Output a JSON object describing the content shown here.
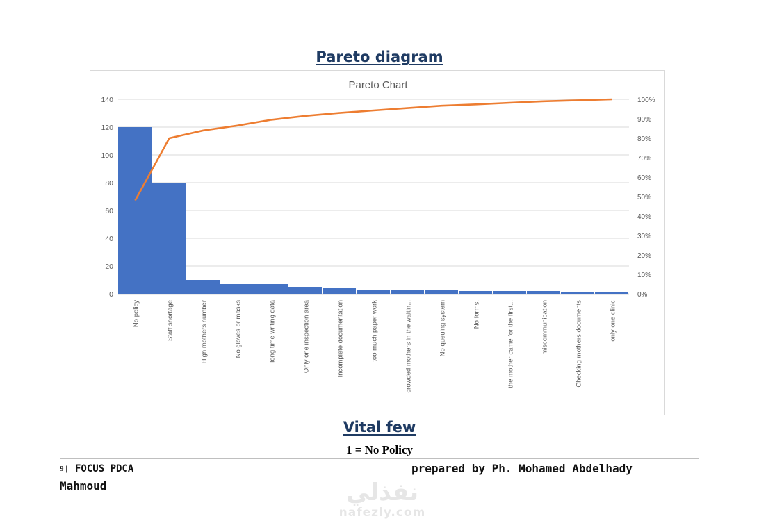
{
  "document": {
    "title": "Pareto diagram",
    "vital_heading": "Vital few",
    "vital_item": "1 = No Policy"
  },
  "footer": {
    "page_number": "9 |",
    "left_text": "FOCUS PDCA",
    "right_text": "prepared by Ph. Mohamed Abdelhady",
    "name": "Mahmoud"
  },
  "watermark": {
    "logo_text": "نفذلي",
    "url": "nafezly.com"
  },
  "colors": {
    "bar": "#4472c4",
    "line": "#ed7d31",
    "heading": "#1f3b63",
    "gridline": "#d9d9d9",
    "axis_text": "#595959"
  },
  "chart_data": {
    "type": "bar",
    "title": "Pareto Chart",
    "categories": [
      "No policy",
      "Staff shortage",
      "High mothers number",
      "No gloves or masks",
      "long time writing data",
      "Only one inspection area",
      "Incomplete documentation",
      "too much paper work",
      "crowded mothers in the waitin...",
      "No queuing system",
      "No forms.",
      "the mother came for the first...",
      "miscommunication",
      "Checking mothers documents",
      "only one clinic"
    ],
    "series": [
      {
        "type": "bar",
        "values": [
          120,
          80,
          10,
          7,
          7,
          5,
          4,
          3,
          3,
          3,
          2,
          2,
          2,
          1,
          1
        ]
      },
      {
        "type": "line",
        "axis": "right",
        "values": [
          48,
          80,
          84,
          86.5,
          89.5,
          91.5,
          93,
          94.3,
          95.5,
          96.7,
          97.4,
          98.2,
          99,
          99.5,
          100
        ]
      }
    ],
    "y_left": {
      "min": 0,
      "max": 140,
      "ticks": [
        "0",
        "20",
        "40",
        "60",
        "80",
        "100",
        "120",
        "140"
      ]
    },
    "y_right": {
      "min": 0,
      "max": 100,
      "ticks": [
        "0%",
        "10%",
        "20%",
        "30%",
        "40%",
        "50%",
        "60%",
        "70%",
        "80%",
        "90%",
        "100%"
      ]
    },
    "grid": true,
    "legend": "none"
  }
}
